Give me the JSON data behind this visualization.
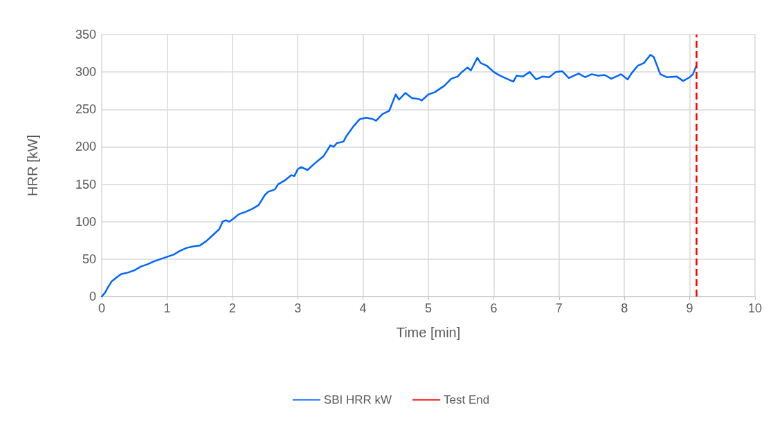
{
  "chart_data": {
    "type": "line",
    "xlabel": "Time [min]",
    "ylabel": "HRR [kW]",
    "xlim": [
      0,
      10
    ],
    "xticks": [
      0,
      1,
      2,
      3,
      4,
      5,
      6,
      7,
      8,
      9,
      10
    ],
    "ylim": [
      0,
      350
    ],
    "yticks": [
      0,
      50,
      100,
      150,
      200,
      250,
      300,
      350
    ],
    "grid": true,
    "legend": "bottom",
    "marker": "none",
    "line_style": "solid",
    "series": [
      {
        "name": "SBI HRR kW",
        "color": "#0066ff",
        "x": [
          0,
          0.05,
          0.1,
          0.15,
          0.25,
          0.3,
          0.4,
          0.5,
          0.6,
          0.7,
          0.8,
          0.9,
          1.0,
          1.1,
          1.2,
          1.3,
          1.4,
          1.5,
          1.6,
          1.7,
          1.8,
          1.85,
          1.9,
          1.95,
          2.0,
          2.1,
          2.2,
          2.3,
          2.4,
          2.5,
          2.55,
          2.65,
          2.7,
          2.8,
          2.9,
          2.95,
          3.0,
          3.05,
          3.15,
          3.25,
          3.4,
          3.5,
          3.55,
          3.6,
          3.7,
          3.75,
          3.85,
          3.95,
          4.05,
          4.15,
          4.2,
          4.3,
          4.4,
          4.5,
          4.55,
          4.65,
          4.75,
          4.85,
          4.9,
          5.0,
          5.1,
          5.2,
          5.25,
          5.35,
          5.45,
          5.5,
          5.6,
          5.65,
          5.75,
          5.8,
          5.9,
          6.0,
          6.1,
          6.2,
          6.3,
          6.35,
          6.45,
          6.55,
          6.65,
          6.75,
          6.85,
          6.95,
          7.05,
          7.15,
          7.3,
          7.4,
          7.5,
          7.6,
          7.7,
          7.8,
          7.9,
          7.95,
          8.05,
          8.1,
          8.2,
          8.3,
          8.4,
          8.45,
          8.55,
          8.65,
          8.8,
          8.9,
          9.0,
          9.05,
          9.1
        ],
        "values": [
          0,
          5,
          13,
          20,
          27,
          30,
          32,
          35,
          40,
          43,
          47,
          50,
          53,
          56,
          61,
          65,
          67,
          68,
          74,
          82,
          90,
          100,
          102,
          100,
          103,
          110,
          113,
          117,
          122,
          136,
          140,
          143,
          150,
          155,
          162,
          161,
          170,
          173,
          169,
          177,
          188,
          202,
          200,
          205,
          207,
          215,
          227,
          237,
          239,
          237,
          235,
          244,
          248,
          270,
          263,
          272,
          265,
          264,
          262,
          270,
          273,
          279,
          282,
          291,
          294,
          299,
          306,
          302,
          319,
          312,
          308,
          300,
          295,
          291,
          287,
          295,
          294,
          300,
          290,
          294,
          293,
          300,
          301,
          292,
          298,
          293,
          297,
          295,
          296,
          291,
          295,
          297,
          290,
          297,
          308,
          312,
          323,
          320,
          297,
          293,
          294,
          288,
          293,
          297,
          308
        ]
      }
    ],
    "ref_lines": [
      {
        "axis": "x",
        "value": 9.1,
        "label": "Test End",
        "color": "#ff0000",
        "line_style": "dashed"
      }
    ]
  }
}
